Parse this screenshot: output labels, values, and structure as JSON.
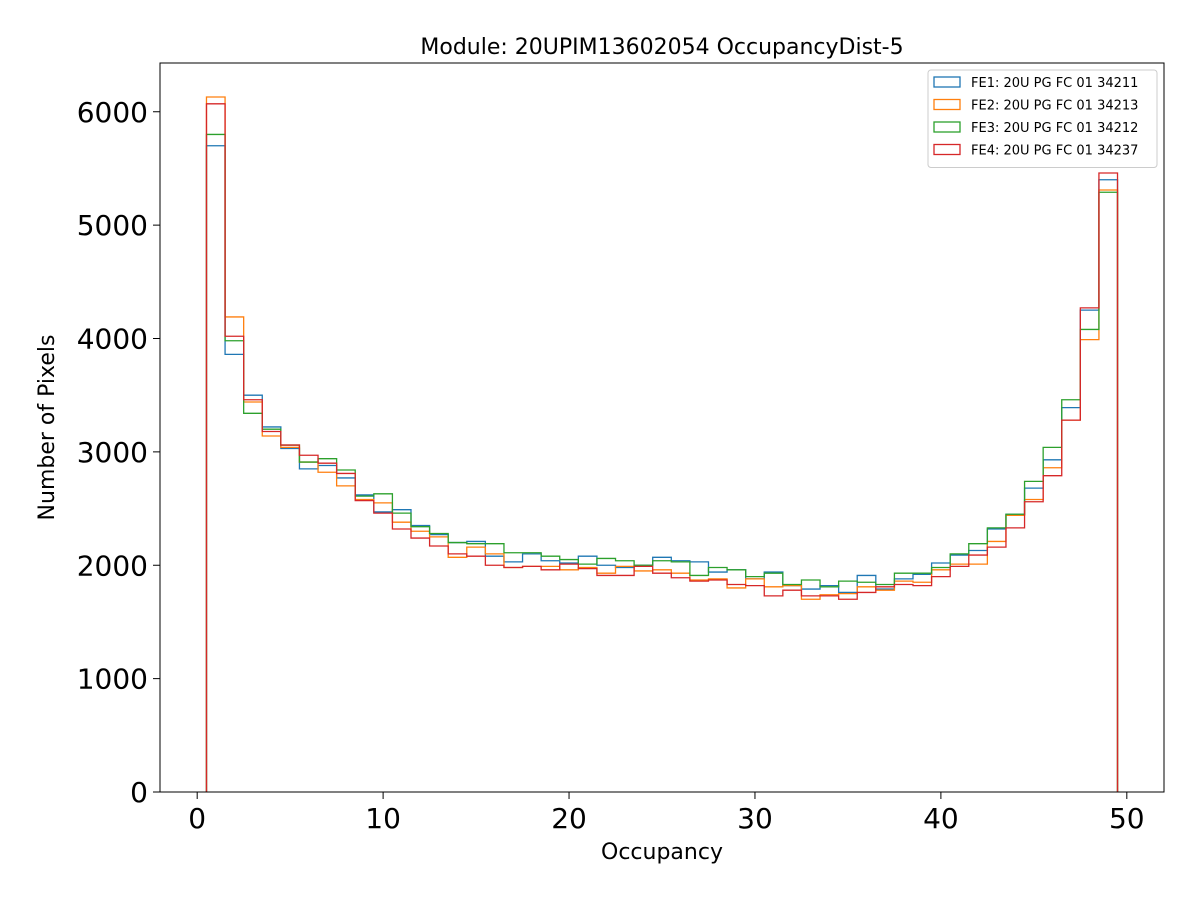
{
  "chart_data": {
    "type": "histogram-step",
    "title": "Module: 20UPIM13602054 OccupancyDist-5",
    "xlabel": "Occupancy",
    "ylabel": "Number of Pixels",
    "xlim": [
      -2,
      52
    ],
    "ylim": [
      0,
      6430
    ],
    "xticks": [
      0,
      10,
      20,
      30,
      40,
      50
    ],
    "yticks": [
      0,
      1000,
      2000,
      3000,
      4000,
      5000,
      6000
    ],
    "bin_start": 0.5,
    "bin_width": 1,
    "legend_position": "top-right",
    "series": [
      {
        "name": "FE1: 20U PG FC 01 34211",
        "color": "#1f77b4",
        "values": [
          5700,
          3860,
          3500,
          3220,
          3030,
          2850,
          2880,
          2770,
          2620,
          2470,
          2490,
          2350,
          2270,
          2200,
          2210,
          2080,
          2030,
          2100,
          2040,
          2020,
          2080,
          2000,
          1980,
          2000,
          2070,
          2040,
          2030,
          1940,
          1960,
          1880,
          1940,
          1820,
          1790,
          1820,
          1760,
          1910,
          1790,
          1880,
          1920,
          2020,
          2090,
          2130,
          2320,
          2450,
          2680,
          2930,
          3390,
          4250,
          5400
        ]
      },
      {
        "name": "FE2: 20U PG FC 01 34213",
        "color": "#ff7f0e",
        "values": [
          6130,
          4190,
          3440,
          3140,
          3040,
          2910,
          2820,
          2700,
          2580,
          2550,
          2380,
          2300,
          2250,
          2070,
          2160,
          2100,
          1980,
          1990,
          1990,
          1960,
          1980,
          1930,
          1990,
          1950,
          1960,
          1930,
          1870,
          1880,
          1800,
          1880,
          1810,
          1820,
          1700,
          1740,
          1750,
          1810,
          1780,
          1860,
          1850,
          1960,
          2010,
          2010,
          2210,
          2440,
          2580,
          2860,
          3280,
          3990,
          5310
        ]
      },
      {
        "name": "FE3: 20U PG FC 01 34212",
        "color": "#2ca02c",
        "values": [
          5800,
          3980,
          3340,
          3200,
          3060,
          2910,
          2940,
          2840,
          2610,
          2630,
          2460,
          2340,
          2280,
          2200,
          2190,
          2190,
          2110,
          2110,
          2080,
          2050,
          2010,
          2060,
          2040,
          2000,
          2040,
          2030,
          1910,
          1980,
          1960,
          1900,
          1930,
          1830,
          1870,
          1810,
          1860,
          1850,
          1830,
          1930,
          1930,
          1980,
          2100,
          2190,
          2330,
          2450,
          2740,
          3040,
          3460,
          4080,
          5290
        ]
      },
      {
        "name": "FE4: 20U PG FC 01 34237",
        "color": "#d62728",
        "values": [
          6070,
          4020,
          3460,
          3180,
          3060,
          2970,
          2900,
          2810,
          2570,
          2460,
          2320,
          2240,
          2170,
          2100,
          2080,
          2000,
          1980,
          1990,
          1960,
          2010,
          1970,
          1910,
          1910,
          1990,
          1930,
          1890,
          1860,
          1870,
          1830,
          1820,
          1730,
          1780,
          1730,
          1730,
          1700,
          1760,
          1810,
          1830,
          1820,
          1900,
          1990,
          2090,
          2160,
          2330,
          2560,
          2790,
          3280,
          4270,
          5460
        ]
      }
    ]
  }
}
